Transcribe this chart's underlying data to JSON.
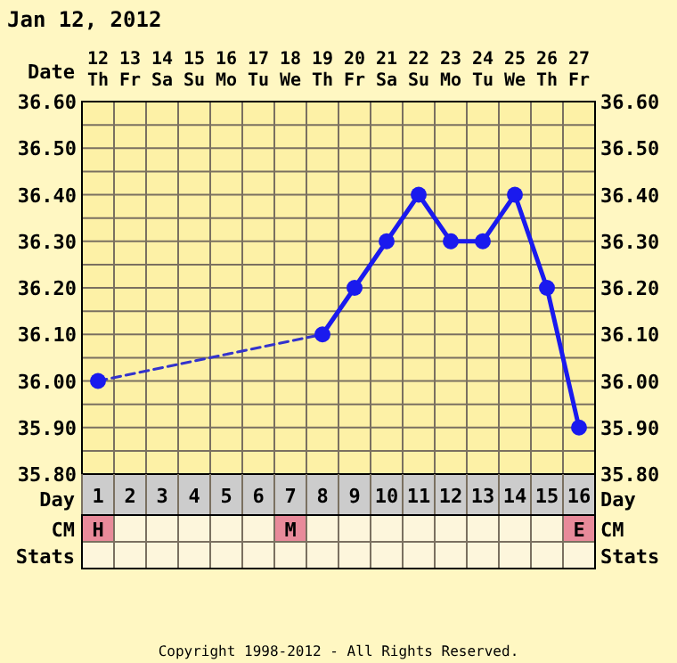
{
  "chart_data": [
    {
      "type": "line",
      "title": "Jan 12, 2012",
      "xlabel": "Date",
      "x2label": "Day",
      "categories": [
        "12 Th",
        "13 Fr",
        "14 Sa",
        "15 Su",
        "16 Mo",
        "17 Tu",
        "18 We",
        "19 Th",
        "20 Fr",
        "21 Sa",
        "22 Su",
        "23 Mo",
        "24 Tu",
        "25 We",
        "26 Th",
        "27 Fr"
      ],
      "x2lim": [
        0.5,
        16.5
      ],
      "x2ticks": [
        1,
        2,
        3,
        4,
        5,
        6,
        7,
        8,
        9,
        10,
        11,
        12,
        13,
        14,
        15,
        16
      ],
      "ylim": [
        35.8,
        36.6
      ],
      "yticks": [
        {
          "value": 35.8,
          "label": "35.80"
        },
        {
          "value": 35.85,
          "label": null
        },
        {
          "value": 35.9,
          "label": "35.90"
        },
        {
          "value": 35.95,
          "label": null
        },
        {
          "value": 36.0,
          "label": "36.00"
        },
        {
          "value": 36.05,
          "label": null
        },
        {
          "value": 36.1,
          "label": "36.10"
        },
        {
          "value": 36.15,
          "label": null
        },
        {
          "value": 36.2,
          "label": "36.20"
        },
        {
          "value": 36.25,
          "label": null
        },
        {
          "value": 36.3,
          "label": "36.30"
        },
        {
          "value": 36.35,
          "label": null
        },
        {
          "value": 36.4,
          "label": "36.40"
        },
        {
          "value": 36.45,
          "label": null
        },
        {
          "value": 36.5,
          "label": "36.50"
        },
        {
          "value": 36.55,
          "label": null
        },
        {
          "value": 36.6,
          "label": "36.60"
        }
      ],
      "y2lim": [
        35.8,
        36.6
      ],
      "y2ticks": [
        {
          "value": 35.8,
          "label": "35.80"
        },
        {
          "value": 35.9,
          "label": "35.90"
        },
        {
          "value": 36.0,
          "label": "36.00"
        },
        {
          "value": 36.1,
          "label": "36.10"
        },
        {
          "value": 36.2,
          "label": "36.20"
        },
        {
          "value": 36.3,
          "label": "36.30"
        },
        {
          "value": 36.4,
          "label": "36.40"
        },
        {
          "value": 36.5,
          "label": "36.50"
        },
        {
          "value": 36.6,
          "label": "36.60"
        }
      ],
      "grid": true,
      "series": [
        {
          "color": "#3333cc",
          "line_style": "dashed",
          "marker": "none",
          "values": [
            36.0,
            null,
            null,
            null,
            null,
            null,
            null,
            36.1,
            null,
            null,
            null,
            null,
            null,
            null,
            null,
            null
          ]
        },
        {
          "color": "#1a1aee",
          "line_style": "solid",
          "marker": "circle",
          "values": [
            36.0,
            null,
            null,
            null,
            null,
            null,
            null,
            36.1,
            36.2,
            36.3,
            36.4,
            36.3,
            36.3,
            36.4,
            36.2,
            35.9
          ]
        }
      ],
      "annotations": [
        "Copyright 1998-2012 - All Rights Reserved."
      ]
    },
    {
      "type": "heatmap",
      "categories": [
        null,
        null,
        null,
        null,
        null,
        null,
        null,
        null,
        null,
        null,
        null,
        null,
        null,
        null,
        null,
        null
      ],
      "y_categories": [
        "CM",
        "Stats"
      ],
      "y2_categories": [
        "CM",
        "Stats"
      ],
      "cells": [
        [
          null,
          null,
          null,
          null,
          null,
          null,
          null,
          null,
          null,
          null,
          null,
          null,
          null,
          null,
          null,
          null
        ],
        [
          null,
          null,
          null,
          null,
          null,
          null,
          null,
          null,
          null,
          null,
          null,
          null,
          null,
          null,
          null,
          null
        ]
      ],
      "cell_labels": [
        [
          "H",
          null,
          null,
          null,
          null,
          null,
          "M",
          null,
          null,
          null,
          null,
          null,
          null,
          null,
          null,
          "E"
        ],
        [
          null,
          null,
          null,
          null,
          null,
          null,
          null,
          null,
          null,
          null,
          null,
          null,
          null,
          null,
          null,
          null
        ]
      ]
    }
  ]
}
